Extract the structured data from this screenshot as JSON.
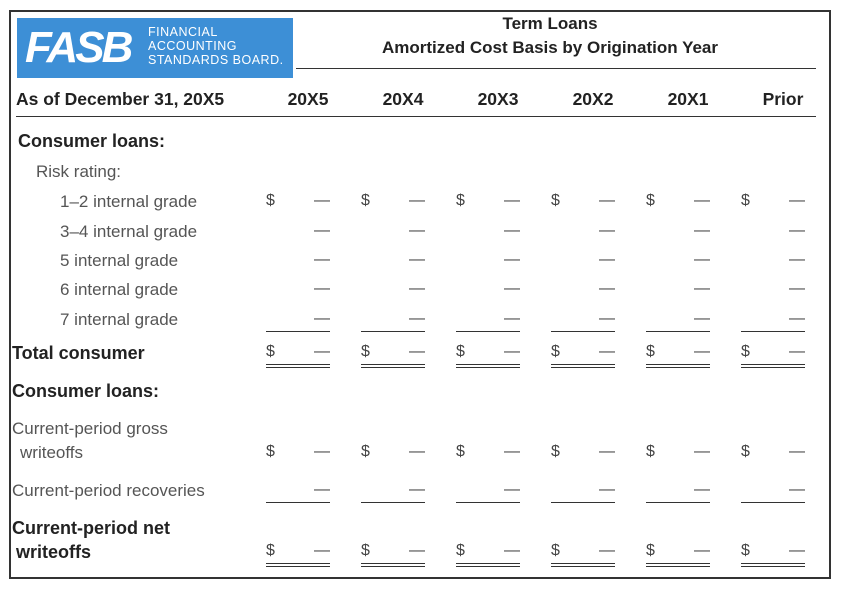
{
  "logo": {
    "mark": "FASB",
    "line1": "FINANCIAL",
    "line2": "ACCOUNTING",
    "line3": "STANDARDS BOARD."
  },
  "header": {
    "title1": "Term Loans",
    "title2": "Amortized Cost Basis by Origination Year"
  },
  "columns": {
    "label": "As of December 31, 20X5",
    "years": [
      "20X5",
      "20X4",
      "20X3",
      "20X2",
      "20X1",
      "Prior"
    ]
  },
  "rows": {
    "consumer_loans": "Consumer loans:",
    "risk_rating": "Risk rating:",
    "grade_1_2": "1–2 internal grade",
    "grade_3_4": "3–4 internal grade",
    "grade_5": "5 internal grade",
    "grade_6": "6 internal grade",
    "grade_7": "7 internal grade",
    "total_consumer": "Total consumer",
    "consumer_loans_2": "Consumer loans:",
    "gross_writeoffs_1": "Current-period gross",
    "gross_writeoffs_2": "writeoffs",
    "recoveries": "Current-period recoveries",
    "net_writeoffs_1": "Current-period net",
    "net_writeoffs_2": "writeoffs"
  },
  "symbols": {
    "dollar": "$",
    "dash": "—"
  }
}
